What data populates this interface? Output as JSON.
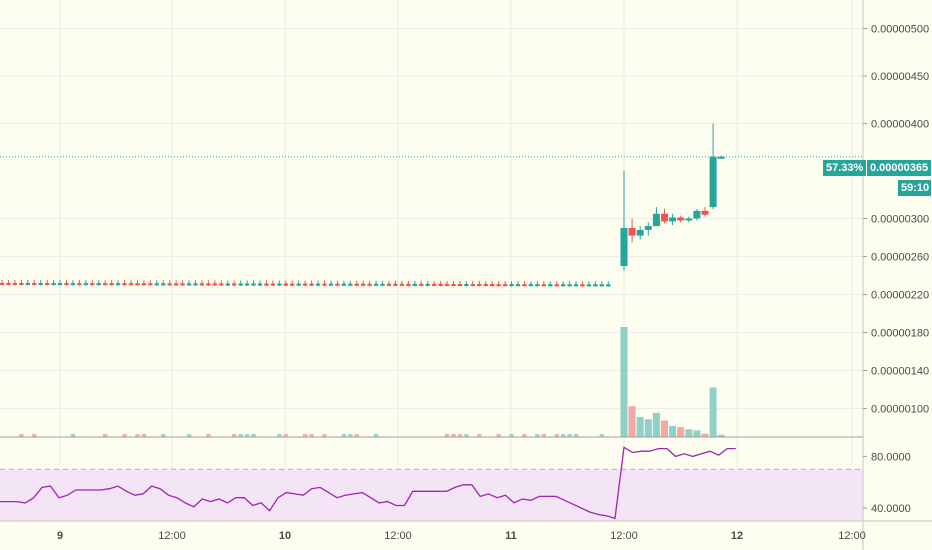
{
  "chart_data": {
    "type": "candlestick",
    "symbol_pair_axis": "price",
    "price_ylim": [
      7e-07,
      5.3e-06
    ],
    "y_ticks": [
      "0.00000500",
      "0.00000450",
      "0.00000400",
      "0.00000300",
      "0.00000260",
      "0.00000220",
      "0.00000180",
      "0.00000140",
      "0.00000100"
    ],
    "x_ticks": [
      {
        "label": "9",
        "bold": true
      },
      {
        "label": "12:00",
        "bold": false
      },
      {
        "label": "10",
        "bold": true
      },
      {
        "label": "12:00",
        "bold": false
      },
      {
        "label": "11",
        "bold": true
      },
      {
        "label": "12:00",
        "bold": false
      },
      {
        "label": "12",
        "bold": true
      },
      {
        "label": "12:00",
        "bold": false
      }
    ],
    "last_price": "0.00000365",
    "last_price_value": 3.65e-06,
    "change_percent": "57.33%",
    "countdown": "59:10",
    "candles_flat_segment": {
      "count": 95,
      "approx_price": 2.32e-06
    },
    "candles_after_jump": [
      {
        "o": 2.5e-06,
        "h": 3.5e-06,
        "l": 2.45e-06,
        "c": 2.9e-06,
        "bull": true
      },
      {
        "o": 2.9e-06,
        "h": 3e-06,
        "l": 2.75e-06,
        "c": 2.82e-06,
        "bull": false
      },
      {
        "o": 2.82e-06,
        "h": 2.92e-06,
        "l": 2.78e-06,
        "c": 2.88e-06,
        "bull": true
      },
      {
        "o": 2.88e-06,
        "h": 2.96e-06,
        "l": 2.82e-06,
        "c": 2.92e-06,
        "bull": true
      },
      {
        "o": 2.92e-06,
        "h": 3.12e-06,
        "l": 2.92e-06,
        "c": 3.05e-06,
        "bull": true
      },
      {
        "o": 3.05e-06,
        "h": 3.1e-06,
        "l": 2.95e-06,
        "c": 2.97e-06,
        "bull": false
      },
      {
        "o": 2.97e-06,
        "h": 3.05e-06,
        "l": 2.93e-06,
        "c": 3.01e-06,
        "bull": true
      },
      {
        "o": 3.01e-06,
        "h": 3.03e-06,
        "l": 2.96e-06,
        "c": 2.98e-06,
        "bull": false
      },
      {
        "o": 2.98e-06,
        "h": 3.02e-06,
        "l": 2.96e-06,
        "c": 3e-06,
        "bull": true
      },
      {
        "o": 3e-06,
        "h": 3.1e-06,
        "l": 2.98e-06,
        "c": 3.08e-06,
        "bull": true
      },
      {
        "o": 3.08e-06,
        "h": 3.12e-06,
        "l": 3.02e-06,
        "c": 3.04e-06,
        "bull": false
      },
      {
        "o": 3.12e-06,
        "h": 4e-06,
        "l": 3.1e-06,
        "c": 3.65e-06,
        "bull": true
      },
      {
        "o": 3.65e-06,
        "h": 3.66e-06,
        "l": 3.63e-06,
        "c": 3.65e-06,
        "bull": true
      }
    ],
    "volume_relative_after_jump": [
      1.0,
      0.28,
      0.18,
      0.16,
      0.22,
      0.15,
      0.1,
      0.09,
      0.07,
      0.06,
      0.03,
      0.45,
      0.02
    ],
    "rsi_ylim": [
      30,
      95
    ],
    "rsi_ticks": [
      "80.0000",
      "40.0000"
    ],
    "rsi_bands": [
      70,
      30
    ],
    "rsi_values_flat": [
      45,
      45,
      45,
      44,
      48,
      56,
      57,
      48,
      50,
      54,
      54,
      54,
      54,
      55,
      57,
      53,
      50,
      51,
      57,
      55,
      50,
      48,
      44,
      41,
      47,
      45,
      47,
      44,
      48,
      48,
      42,
      44,
      38,
      48,
      52,
      51,
      50,
      55,
      56,
      52,
      48,
      50,
      51,
      52,
      48,
      44,
      45,
      42,
      42,
      53,
      53,
      53,
      53,
      53,
      56,
      58,
      58,
      49,
      51,
      48,
      50,
      44,
      47,
      46,
      49,
      49,
      49,
      46,
      43,
      40,
      37,
      35,
      34,
      32
    ],
    "rsi_values_after_jump": [
      87,
      83,
      84,
      84,
      86,
      86,
      80,
      82,
      80,
      82,
      84,
      81,
      86,
      86
    ]
  }
}
